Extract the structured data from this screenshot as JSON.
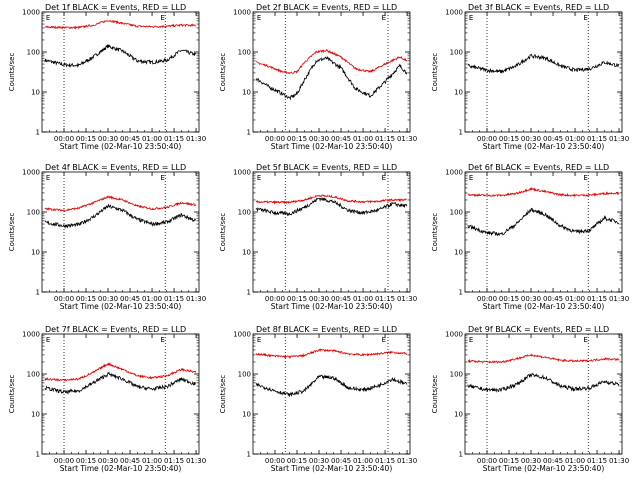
{
  "colors": {
    "events": "#000000",
    "lld": "#e00000",
    "background": "#ffffff",
    "axis": "#000000"
  },
  "chart_data": {
    "type": "line",
    "y_scale": "log",
    "ylim": [
      1,
      1000
    ],
    "y_ticks": [
      1,
      10,
      100,
      1000
    ],
    "y_tick_labels": [
      "1",
      "10",
      "100",
      "1000"
    ],
    "x_range_minutes": [
      -15,
      92
    ],
    "x_ticks_minutes": [
      0,
      15,
      30,
      45,
      60,
      75,
      90
    ],
    "x_tick_labels": [
      "00:00",
      "00:15",
      "00:30",
      "00:45",
      "01:00",
      "01:15",
      "01:30"
    ],
    "xlabel": "Start Time (02-Mar-10 23:50:40)",
    "ylabel": "Counts/sec",
    "flag_label": "E",
    "grid": false,
    "panels": [
      {
        "title": "Det 1f BLACK = Events, RED = LLD",
        "events": {
          "x": [
            -13,
            0,
            10,
            20,
            30,
            40,
            50,
            60,
            70,
            80,
            90
          ],
          "y": [
            62,
            48,
            46,
            75,
            140,
            105,
            60,
            55,
            62,
            110,
            85
          ]
        },
        "lld": {
          "x": [
            -13,
            0,
            10,
            20,
            30,
            40,
            50,
            60,
            70,
            80,
            90
          ],
          "y": [
            420,
            410,
            410,
            470,
            620,
            520,
            440,
            430,
            440,
            470,
            460
          ]
        },
        "dotted_x": [
          0,
          69
        ],
        "flag_x": [
          -13,
          65
        ]
      },
      {
        "title": "Det 2f BLACK = Events, RED = LLD",
        "events": {
          "x": [
            -13,
            -5,
            5,
            10,
            15,
            20,
            28,
            35,
            45,
            55,
            65,
            75,
            85,
            90
          ],
          "y": [
            22,
            14,
            9,
            7,
            9,
            20,
            60,
            70,
            40,
            12,
            8,
            18,
            45,
            30
          ]
        },
        "lld": {
          "x": [
            -13,
            -5,
            5,
            10,
            15,
            20,
            28,
            35,
            45,
            55,
            65,
            75,
            85,
            90
          ],
          "y": [
            55,
            45,
            32,
            30,
            32,
            55,
            100,
            110,
            75,
            38,
            32,
            50,
            75,
            60
          ]
        },
        "dotted_x": [
          7,
          77
        ],
        "flag_x": [
          -13,
          72
        ]
      },
      {
        "title": "Det 3f BLACK = Events, RED = LLD",
        "events": {
          "x": [
            -13,
            0,
            10,
            20,
            30,
            40,
            50,
            60,
            70,
            80,
            90
          ],
          "y": [
            45,
            35,
            32,
            45,
            80,
            70,
            45,
            35,
            38,
            55,
            45
          ]
        },
        "dotted_x": [
          0,
          69
        ],
        "flag_x": [
          -13,
          65
        ]
      },
      {
        "title": "Det 4f BLACK = Events, RED = LLD",
        "events": {
          "x": [
            -13,
            0,
            10,
            20,
            30,
            40,
            50,
            60,
            70,
            80,
            90
          ],
          "y": [
            55,
            45,
            48,
            75,
            140,
            110,
            65,
            50,
            55,
            85,
            60
          ]
        },
        "lld": {
          "x": [
            -13,
            0,
            10,
            20,
            30,
            40,
            50,
            60,
            70,
            80,
            90
          ],
          "y": [
            120,
            110,
            125,
            170,
            240,
            200,
            140,
            120,
            130,
            170,
            150
          ]
        },
        "dotted_x": [
          0,
          69
        ],
        "flag_x": [
          -13,
          65
        ]
      },
      {
        "title": "Det 5f BLACK = Events, RED = LLD",
        "events": {
          "x": [
            -13,
            0,
            10,
            20,
            30,
            40,
            50,
            60,
            70,
            80,
            90
          ],
          "y": [
            120,
            95,
            90,
            130,
            220,
            180,
            110,
            95,
            110,
            160,
            140
          ]
        },
        "lld": {
          "x": [
            -13,
            0,
            10,
            20,
            30,
            40,
            50,
            60,
            70,
            80,
            90
          ],
          "y": [
            180,
            175,
            175,
            200,
            260,
            240,
            190,
            180,
            185,
            200,
            200
          ]
        },
        "dotted_x": [
          7,
          77
        ],
        "flag_x": [
          -13,
          72
        ]
      },
      {
        "title": "Det 6f BLACK = Events, RED = LLD",
        "events": {
          "x": [
            -13,
            0,
            10,
            20,
            30,
            40,
            50,
            60,
            70,
            80,
            90
          ],
          "y": [
            45,
            30,
            28,
            50,
            115,
            85,
            45,
            32,
            35,
            70,
            55
          ]
        },
        "lld": {
          "x": [
            -13,
            0,
            10,
            20,
            30,
            40,
            50,
            60,
            70,
            80,
            90
          ],
          "y": [
            270,
            260,
            260,
            290,
            380,
            320,
            270,
            260,
            265,
            290,
            300
          ]
        },
        "dotted_x": [
          0,
          69
        ],
        "flag_x": [
          -13,
          65
        ]
      },
      {
        "title": "Det 7f BLACK = Events, RED = LLD",
        "events": {
          "x": [
            -13,
            0,
            10,
            20,
            30,
            40,
            50,
            60,
            70,
            80,
            90
          ],
          "y": [
            45,
            35,
            38,
            60,
            100,
            75,
            48,
            42,
            48,
            75,
            55
          ]
        },
        "lld": {
          "x": [
            -13,
            0,
            10,
            20,
            30,
            40,
            50,
            60,
            70,
            80,
            90
          ],
          "y": [
            75,
            70,
            75,
            110,
            180,
            130,
            90,
            80,
            90,
            130,
            110
          ]
        },
        "dotted_x": [
          0,
          69
        ],
        "flag_x": [
          -13,
          65
        ]
      },
      {
        "title": "Det 8f BLACK = Events, RED = LLD",
        "events": {
          "x": [
            -13,
            0,
            10,
            20,
            30,
            40,
            50,
            60,
            70,
            80,
            90
          ],
          "y": [
            55,
            38,
            30,
            38,
            85,
            80,
            45,
            40,
            50,
            75,
            55
          ]
        },
        "lld": {
          "x": [
            -13,
            0,
            10,
            20,
            30,
            40,
            50,
            60,
            70,
            80,
            90
          ],
          "y": [
            320,
            280,
            270,
            290,
            400,
            380,
            320,
            300,
            320,
            350,
            320
          ]
        },
        "dotted_x": [
          7,
          77
        ],
        "flag_x": [
          -13,
          72
        ]
      },
      {
        "title": "Det 9f BLACK = Events, RED = LLD",
        "events": {
          "x": [
            -13,
            0,
            10,
            20,
            30,
            40,
            50,
            60,
            70,
            80,
            90
          ],
          "y": [
            50,
            40,
            40,
            55,
            95,
            80,
            50,
            42,
            45,
            65,
            55
          ]
        },
        "lld": {
          "x": [
            -13,
            0,
            10,
            20,
            30,
            40,
            50,
            60,
            70,
            80,
            90
          ],
          "y": [
            210,
            200,
            200,
            240,
            300,
            260,
            220,
            210,
            215,
            240,
            230
          ]
        },
        "dotted_x": [
          0,
          69
        ],
        "flag_x": [
          -13,
          65
        ]
      }
    ]
  }
}
